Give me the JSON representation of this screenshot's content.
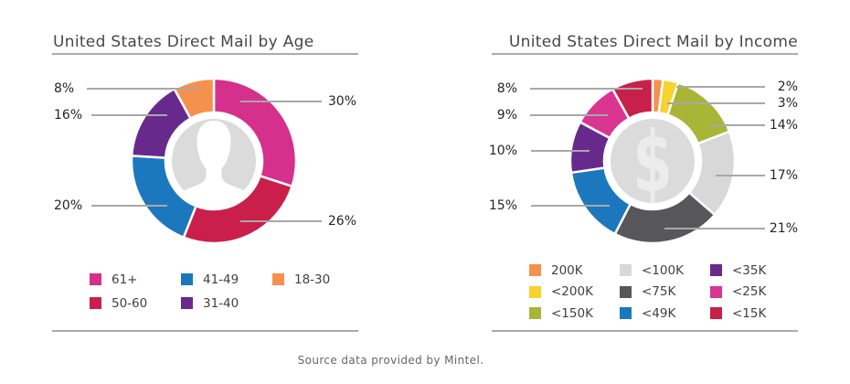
{
  "footer": "Source data provided by Mintel.",
  "chart_data": [
    {
      "type": "pie",
      "subtype": "donut",
      "title": "United States Direct Mail by Age",
      "categories": [
        "61+",
        "50-60",
        "41-49",
        "31-40",
        "18-30"
      ],
      "values": [
        30,
        26,
        20,
        16,
        8
      ],
      "labels": [
        "30%",
        "26%",
        "20%",
        "16%",
        "8%"
      ],
      "unit": "%",
      "colors": [
        "#D5308C",
        "#CB1F4B",
        "#1C78BE",
        "#68298C",
        "#F6914D"
      ],
      "legend_position": "bottom",
      "center_icon": "person",
      "start_angle_deg": 0,
      "direction": "clockwise"
    },
    {
      "type": "pie",
      "subtype": "donut",
      "title": "United States Direct Mail by Income",
      "categories": [
        "200K",
        "<200K",
        "<150K",
        "<100K",
        "<75K",
        "<49K",
        "<35K",
        "<25K",
        "<15K"
      ],
      "values": [
        2,
        3,
        14,
        17,
        21,
        15,
        10,
        9,
        8
      ],
      "labels": [
        "2%",
        "3%",
        "14%",
        "17%",
        "21%",
        "15%",
        "10%",
        "9%",
        "8%"
      ],
      "unit": "%",
      "colors": [
        "#F6914D",
        "#F8D22F",
        "#A9B536",
        "#D8D8D8",
        "#57575A",
        "#1C78BE",
        "#68298C",
        "#D93591",
        "#C72049"
      ],
      "legend_position": "bottom",
      "center_icon": "dollar",
      "center_symbol": "$",
      "start_angle_deg": 0,
      "direction": "clockwise"
    }
  ]
}
